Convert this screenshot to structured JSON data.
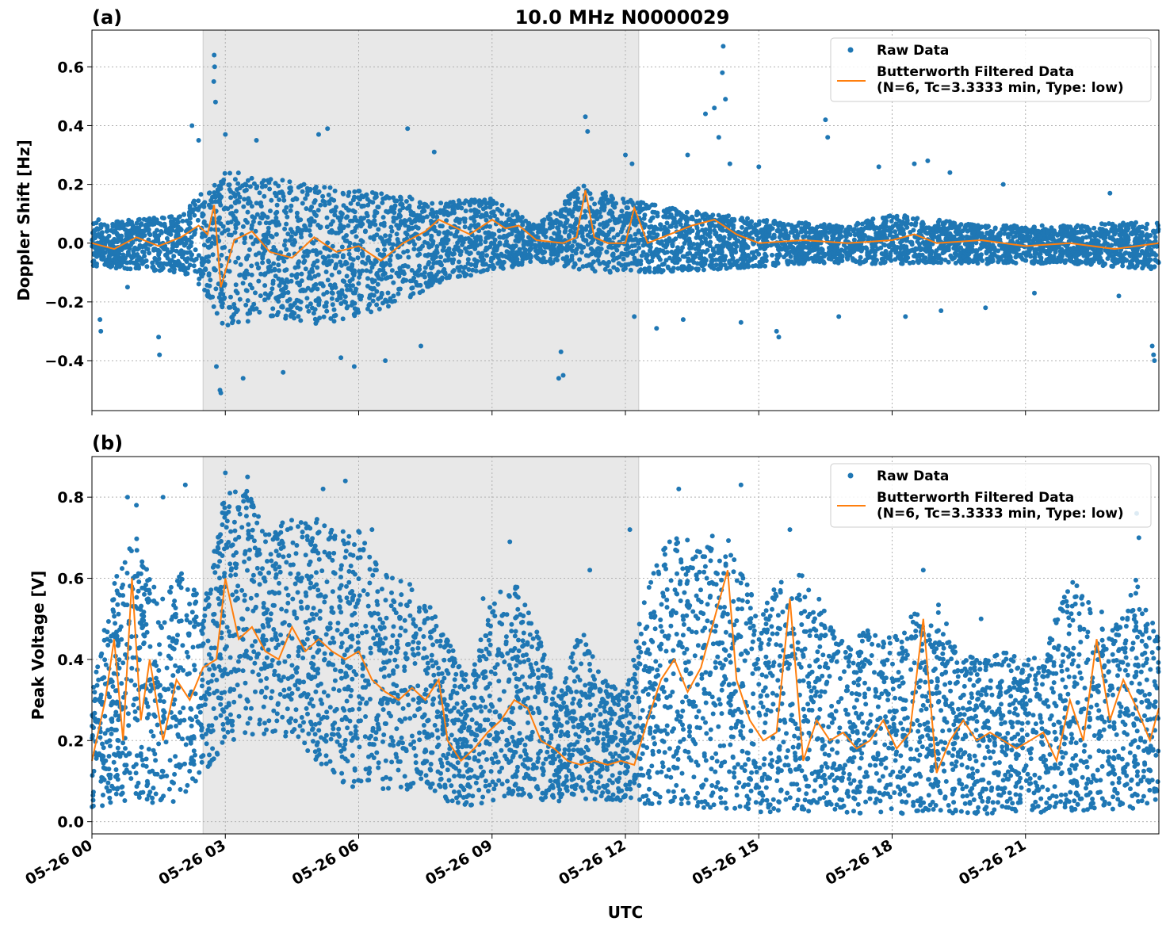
{
  "title": "10.0 MHz N0000029",
  "xlabel": "UTC",
  "x_ticks": [
    "05-26 00",
    "05-26 03",
    "05-26 06",
    "05-26 09",
    "05-26 12",
    "05-26 15",
    "05-26 18",
    "05-26 21"
  ],
  "colors": {
    "raw": "#1f77b4",
    "filtered": "#ff7f0e",
    "shade": "#e8e8e8"
  },
  "chart_data": [
    {
      "type": "scatter",
      "panel_label": "(a)",
      "ylabel": "Doppler Shift [Hz]",
      "x_unit": "hours UTC on 05-26",
      "xlim": [
        0,
        24
      ],
      "ylim": [
        -0.57,
        0.725
      ],
      "y_ticks": [
        0.6,
        0.4,
        0.2,
        0.0,
        -0.2,
        -0.4
      ],
      "y_tick_labels": [
        "0.6",
        "0.4",
        "0.2",
        "0.0",
        "−0.2",
        "−0.4"
      ],
      "grid": true,
      "legend": "top-right",
      "shaded_x_range": [
        2.5,
        12.3
      ],
      "series": [
        {
          "name": "Raw Data",
          "style": "points",
          "envelope_x": [
            0,
            1,
            2,
            2.5,
            3,
            4,
            5,
            6,
            7,
            8,
            9,
            10,
            11,
            12,
            13,
            14,
            15,
            16,
            17,
            18,
            19,
            20,
            21,
            22,
            23,
            24
          ],
          "envelope_low": [
            -0.08,
            -0.09,
            -0.1,
            -0.15,
            -0.3,
            -0.25,
            -0.28,
            -0.25,
            -0.2,
            -0.12,
            -0.1,
            -0.06,
            -0.1,
            -0.1,
            -0.1,
            -0.09,
            -0.08,
            -0.07,
            -0.07,
            -0.07,
            -0.07,
            -0.07,
            -0.07,
            -0.07,
            -0.08,
            -0.09
          ],
          "envelope_high": [
            0.07,
            0.08,
            0.1,
            0.18,
            0.25,
            0.22,
            0.2,
            0.18,
            0.16,
            0.14,
            0.16,
            0.06,
            0.2,
            0.15,
            0.12,
            0.1,
            0.08,
            0.07,
            0.06,
            0.1,
            0.08,
            0.06,
            0.06,
            0.06,
            0.07,
            0.07
          ],
          "outliers": [
            {
              "x": 0.15,
              "y": 0.08
            },
            {
              "x": 0.18,
              "y": -0.26
            },
            {
              "x": 0.2,
              "y": -0.3
            },
            {
              "x": 0.8,
              "y": -0.15
            },
            {
              "x": 1.5,
              "y": -0.32
            },
            {
              "x": 1.52,
              "y": -0.38
            },
            {
              "x": 2.25,
              "y": 0.4
            },
            {
              "x": 2.4,
              "y": 0.35
            },
            {
              "x": 2.75,
              "y": 0.64
            },
            {
              "x": 2.76,
              "y": 0.6
            },
            {
              "x": 2.74,
              "y": 0.55
            },
            {
              "x": 2.78,
              "y": 0.48
            },
            {
              "x": 2.8,
              "y": -0.42
            },
            {
              "x": 2.88,
              "y": -0.5
            },
            {
              "x": 2.9,
              "y": -0.51
            },
            {
              "x": 3.0,
              "y": 0.37
            },
            {
              "x": 3.4,
              "y": -0.46
            },
            {
              "x": 3.7,
              "y": 0.35
            },
            {
              "x": 4.3,
              "y": -0.44
            },
            {
              "x": 5.1,
              "y": 0.37
            },
            {
              "x": 5.3,
              "y": 0.39
            },
            {
              "x": 5.6,
              "y": -0.39
            },
            {
              "x": 5.9,
              "y": -0.42
            },
            {
              "x": 6.6,
              "y": -0.4
            },
            {
              "x": 7.1,
              "y": 0.39
            },
            {
              "x": 7.7,
              "y": 0.31
            },
            {
              "x": 7.4,
              "y": -0.35
            },
            {
              "x": 10.5,
              "y": -0.46
            },
            {
              "x": 10.6,
              "y": -0.45
            },
            {
              "x": 10.55,
              "y": -0.37
            },
            {
              "x": 11.1,
              "y": 0.43
            },
            {
              "x": 11.15,
              "y": 0.38
            },
            {
              "x": 12.0,
              "y": 0.3
            },
            {
              "x": 12.15,
              "y": 0.27
            },
            {
              "x": 12.2,
              "y": -0.25
            },
            {
              "x": 12.7,
              "y": -0.29
            },
            {
              "x": 13.3,
              "y": -0.26
            },
            {
              "x": 13.4,
              "y": 0.3
            },
            {
              "x": 13.8,
              "y": 0.44
            },
            {
              "x": 14.0,
              "y": 0.46
            },
            {
              "x": 14.2,
              "y": 0.67
            },
            {
              "x": 14.18,
              "y": 0.58
            },
            {
              "x": 14.25,
              "y": 0.49
            },
            {
              "x": 14.1,
              "y": 0.36
            },
            {
              "x": 14.35,
              "y": 0.27
            },
            {
              "x": 14.6,
              "y": -0.27
            },
            {
              "x": 15.0,
              "y": 0.26
            },
            {
              "x": 15.4,
              "y": -0.3
            },
            {
              "x": 15.45,
              "y": -0.32
            },
            {
              "x": 16.5,
              "y": 0.42
            },
            {
              "x": 16.55,
              "y": 0.36
            },
            {
              "x": 16.8,
              "y": -0.25
            },
            {
              "x": 17.7,
              "y": 0.26
            },
            {
              "x": 18.3,
              "y": -0.25
            },
            {
              "x": 18.5,
              "y": 0.27
            },
            {
              "x": 18.8,
              "y": 0.28
            },
            {
              "x": 19.1,
              "y": -0.23
            },
            {
              "x": 19.3,
              "y": 0.24
            },
            {
              "x": 20.1,
              "y": -0.22
            },
            {
              "x": 20.5,
              "y": 0.2
            },
            {
              "x": 21.2,
              "y": -0.17
            },
            {
              "x": 22.9,
              "y": 0.17
            },
            {
              "x": 23.1,
              "y": -0.18
            },
            {
              "x": 23.85,
              "y": -0.35
            },
            {
              "x": 23.9,
              "y": -0.4
            },
            {
              "x": 23.88,
              "y": -0.38
            }
          ]
        },
        {
          "name": "Butterworth Filtered Data\n(N=6, Tc=3.3333 min, Type: low)",
          "style": "line",
          "x": [
            0,
            0.5,
            1,
            1.5,
            2,
            2.4,
            2.6,
            2.75,
            2.9,
            3.2,
            3.6,
            4,
            4.5,
            5,
            5.5,
            6,
            6.5,
            7,
            7.5,
            7.8,
            8.5,
            9,
            9.3,
            9.6,
            10,
            10.6,
            10.9,
            11.1,
            11.3,
            11.6,
            12,
            12.2,
            12.5,
            13,
            13.5,
            14,
            14.5,
            15,
            16,
            17,
            18,
            18.5,
            19,
            20,
            21,
            22,
            23,
            24
          ],
          "y": [
            0.0,
            -0.02,
            0.02,
            -0.01,
            0.02,
            0.06,
            0.03,
            0.13,
            -0.15,
            0.01,
            0.04,
            -0.03,
            -0.05,
            0.02,
            -0.03,
            -0.01,
            -0.06,
            0.0,
            0.04,
            0.08,
            0.03,
            0.08,
            0.05,
            0.06,
            0.01,
            0.0,
            0.02,
            0.18,
            0.02,
            0.0,
            0.0,
            0.12,
            0.0,
            0.03,
            0.06,
            0.08,
            0.03,
            0.0,
            0.01,
            0.0,
            0.01,
            0.03,
            0.0,
            0.01,
            -0.01,
            0.0,
            -0.02,
            0.0
          ]
        }
      ]
    },
    {
      "type": "scatter",
      "panel_label": "(b)",
      "ylabel": "Peak Voltage [V]",
      "x_unit": "hours UTC on 05-26",
      "xlim": [
        0,
        24
      ],
      "ylim": [
        -0.03,
        0.9
      ],
      "y_ticks": [
        0.8,
        0.6,
        0.4,
        0.2,
        0.0
      ],
      "y_tick_labels": [
        "0.8",
        "0.6",
        "0.4",
        "0.2",
        "0.0"
      ],
      "grid": true,
      "legend": "top-right",
      "shaded_x_range": [
        2.5,
        12.3
      ],
      "series": [
        {
          "name": "Raw Data",
          "style": "points",
          "envelope_x": [
            0,
            0.5,
            1,
            1.5,
            2,
            2.5,
            3,
            3.5,
            4,
            4.5,
            5,
            5.5,
            6,
            6.5,
            7,
            7.5,
            8,
            8.5,
            9,
            9.5,
            10,
            10.5,
            11,
            11.5,
            12,
            12.5,
            13,
            13.5,
            14,
            14.5,
            15,
            15.5,
            16,
            16.5,
            17,
            17.5,
            18,
            18.5,
            19,
            19.5,
            20,
            20.5,
            21,
            21.5,
            22,
            22.5,
            23,
            23.5,
            24
          ],
          "envelope_low": [
            0.03,
            0.04,
            0.05,
            0.04,
            0.05,
            0.1,
            0.2,
            0.2,
            0.22,
            0.2,
            0.15,
            0.1,
            0.08,
            0.08,
            0.08,
            0.08,
            0.05,
            0.04,
            0.05,
            0.06,
            0.05,
            0.05,
            0.05,
            0.05,
            0.05,
            0.04,
            0.03,
            0.03,
            0.03,
            0.03,
            0.02,
            0.02,
            0.02,
            0.02,
            0.02,
            0.02,
            0.02,
            0.02,
            0.02,
            0.02,
            0.02,
            0.02,
            0.02,
            0.02,
            0.02,
            0.03,
            0.03,
            0.03,
            0.03
          ],
          "envelope_high": [
            0.32,
            0.6,
            0.72,
            0.55,
            0.62,
            0.55,
            0.82,
            0.82,
            0.72,
            0.75,
            0.75,
            0.72,
            0.72,
            0.62,
            0.6,
            0.55,
            0.45,
            0.35,
            0.55,
            0.6,
            0.48,
            0.32,
            0.48,
            0.35,
            0.32,
            0.6,
            0.7,
            0.72,
            0.72,
            0.68,
            0.55,
            0.6,
            0.62,
            0.52,
            0.45,
            0.48,
            0.45,
            0.52,
            0.55,
            0.42,
            0.4,
            0.42,
            0.4,
            0.45,
            0.6,
            0.55,
            0.48,
            0.6,
            0.45
          ],
          "outliers": [
            {
              "x": 0.8,
              "y": 0.8
            },
            {
              "x": 1.0,
              "y": 0.78
            },
            {
              "x": 1.6,
              "y": 0.8
            },
            {
              "x": 2.1,
              "y": 0.83
            },
            {
              "x": 3.0,
              "y": 0.86
            },
            {
              "x": 3.5,
              "y": 0.85
            },
            {
              "x": 5.2,
              "y": 0.82
            },
            {
              "x": 5.7,
              "y": 0.84
            },
            {
              "x": 6.3,
              "y": 0.72
            },
            {
              "x": 9.4,
              "y": 0.69
            },
            {
              "x": 11.2,
              "y": 0.62
            },
            {
              "x": 12.1,
              "y": 0.72
            },
            {
              "x": 13.2,
              "y": 0.82
            },
            {
              "x": 14.6,
              "y": 0.83
            },
            {
              "x": 15.7,
              "y": 0.72
            },
            {
              "x": 18.7,
              "y": 0.62
            },
            {
              "x": 20.0,
              "y": 0.5
            },
            {
              "x": 23.5,
              "y": 0.76
            },
            {
              "x": 23.55,
              "y": 0.7
            },
            {
              "x": 10.7,
              "y": 0.22
            },
            {
              "x": 8.8,
              "y": 0.55
            }
          ]
        },
        {
          "name": "Butterworth Filtered Data\n(N=6, Tc=3.3333 min, Type: low)",
          "style": "line",
          "x": [
            0,
            0.3,
            0.5,
            0.7,
            0.9,
            1.1,
            1.3,
            1.6,
            1.9,
            2.2,
            2.5,
            2.8,
            3.0,
            3.3,
            3.6,
            3.9,
            4.2,
            4.5,
            4.8,
            5.1,
            5.4,
            5.7,
            6.0,
            6.3,
            6.6,
            6.9,
            7.2,
            7.5,
            7.8,
            8.0,
            8.3,
            8.6,
            8.9,
            9.2,
            9.5,
            9.8,
            10.1,
            10.4,
            10.7,
            11.0,
            11.3,
            11.6,
            11.9,
            12.2,
            12.5,
            12.8,
            13.1,
            13.4,
            13.7,
            14.0,
            14.3,
            14.5,
            14.8,
            15.1,
            15.4,
            15.7,
            16.0,
            16.3,
            16.6,
            16.9,
            17.2,
            17.5,
            17.8,
            18.1,
            18.4,
            18.7,
            19.0,
            19.3,
            19.6,
            19.9,
            20.2,
            20.5,
            20.8,
            21.1,
            21.4,
            21.7,
            22.0,
            22.3,
            22.6,
            22.9,
            23.2,
            23.5,
            23.8,
            24.0
          ],
          "y": [
            0.15,
            0.3,
            0.45,
            0.2,
            0.6,
            0.25,
            0.4,
            0.2,
            0.35,
            0.3,
            0.38,
            0.4,
            0.6,
            0.45,
            0.48,
            0.42,
            0.4,
            0.48,
            0.42,
            0.45,
            0.42,
            0.4,
            0.42,
            0.35,
            0.32,
            0.3,
            0.33,
            0.3,
            0.35,
            0.2,
            0.15,
            0.18,
            0.22,
            0.25,
            0.3,
            0.28,
            0.2,
            0.18,
            0.15,
            0.14,
            0.15,
            0.14,
            0.15,
            0.14,
            0.25,
            0.35,
            0.4,
            0.32,
            0.38,
            0.5,
            0.62,
            0.35,
            0.25,
            0.2,
            0.22,
            0.55,
            0.15,
            0.25,
            0.2,
            0.22,
            0.18,
            0.2,
            0.25,
            0.18,
            0.22,
            0.5,
            0.12,
            0.2,
            0.25,
            0.2,
            0.22,
            0.2,
            0.18,
            0.2,
            0.22,
            0.15,
            0.3,
            0.2,
            0.45,
            0.25,
            0.35,
            0.28,
            0.2,
            0.28
          ]
        }
      ]
    }
  ]
}
